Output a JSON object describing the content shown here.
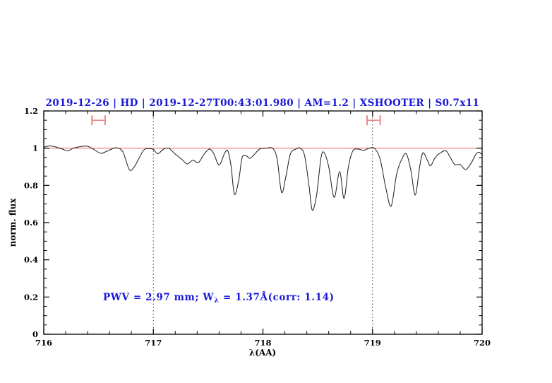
{
  "title": {
    "text": "2019-12-26 | HD | 2019-12-27T00:43:01.980 | AM=1.2 | XSHOOTER | S0.7x11"
  },
  "annotation": {
    "part1": "PWV = 2.97 mm; W",
    "sub": "λ",
    "part2": " = 1.37Å(corr: 1.14)"
  },
  "axes": {
    "xlabel": "λ(AA)",
    "ylabel": "norm. flux",
    "xticks": [
      716,
      717,
      718,
      719,
      720
    ],
    "xtick_labels": [
      "716",
      "717",
      "718",
      "719",
      "720"
    ],
    "yticks": [
      0,
      0.2,
      0.4,
      0.6,
      0.8,
      1,
      1.2
    ],
    "ytick_labels": [
      "0",
      "0.2",
      "0.4",
      "0.6",
      "0.8",
      "1",
      "1.2"
    ],
    "x_minor_step": 0.2,
    "y_minor_step": 0.05
  },
  "plot": {
    "reference_line_y": 1.0,
    "dotted_lines_x": [
      717,
      719
    ],
    "range_markers": [
      {
        "x1": 716.44,
        "x2": 716.56,
        "y": 1.15
      },
      {
        "x1": 718.95,
        "x2": 719.07,
        "y": 1.15
      }
    ]
  },
  "colors": {
    "accent_blue": "#1818d8",
    "reference_red": "#f26f6f",
    "marker_red": "#ef8585",
    "spectrum": "#1b1b1b",
    "frame": "#000000"
  },
  "chart_data": {
    "type": "line",
    "title": "2019-12-26 | HD | 2019-12-27T00:43:01.980 | AM=1.2 | XSHOOTER | S0.7x11",
    "xlabel": "λ(AA)",
    "ylabel": "norm. flux",
    "xlim": [
      716,
      720
    ],
    "ylim": [
      0,
      1.2
    ],
    "grid": false,
    "legend": false,
    "annotations": [
      "PWV = 2.97 mm; Wλ = 1.37Å(corr: 1.14)"
    ],
    "reference_line_y": 1.0,
    "dotted_vertical_lines_x": [
      717,
      719
    ],
    "series": [
      {
        "name": "normalized telluric spectrum",
        "points": [
          [
            716.0,
            1.005
          ],
          [
            716.05,
            1.012
          ],
          [
            716.1,
            1.008
          ],
          [
            716.17,
            0.995
          ],
          [
            716.22,
            0.985
          ],
          [
            716.27,
            1.0
          ],
          [
            716.33,
            1.008
          ],
          [
            716.4,
            1.01
          ],
          [
            716.46,
            0.992
          ],
          [
            716.52,
            0.972
          ],
          [
            716.57,
            0.982
          ],
          [
            716.62,
            0.995
          ],
          [
            716.66,
            1.002
          ],
          [
            716.72,
            0.982
          ],
          [
            716.78,
            0.885
          ],
          [
            716.82,
            0.895
          ],
          [
            716.86,
            0.935
          ],
          [
            716.91,
            0.988
          ],
          [
            716.95,
            0.998
          ],
          [
            717.0,
            0.993
          ],
          [
            717.04,
            0.97
          ],
          [
            717.09,
            0.993
          ],
          [
            717.14,
            1.0
          ],
          [
            717.2,
            0.968
          ],
          [
            717.26,
            0.94
          ],
          [
            717.31,
            0.915
          ],
          [
            717.36,
            0.935
          ],
          [
            717.41,
            0.922
          ],
          [
            717.46,
            0.965
          ],
          [
            717.51,
            0.995
          ],
          [
            717.55,
            0.972
          ],
          [
            717.6,
            0.91
          ],
          [
            717.65,
            0.972
          ],
          [
            717.68,
            0.985
          ],
          [
            717.71,
            0.9
          ],
          [
            717.74,
            0.752
          ],
          [
            717.78,
            0.83
          ],
          [
            717.81,
            0.95
          ],
          [
            717.85,
            0.958
          ],
          [
            717.88,
            0.945
          ],
          [
            717.92,
            0.965
          ],
          [
            717.97,
            0.995
          ],
          [
            718.03,
            1.0
          ],
          [
            718.09,
            0.998
          ],
          [
            718.13,
            0.94
          ],
          [
            718.17,
            0.762
          ],
          [
            718.21,
            0.85
          ],
          [
            718.25,
            0.968
          ],
          [
            718.3,
            0.995
          ],
          [
            718.34,
            1.0
          ],
          [
            718.38,
            0.96
          ],
          [
            718.42,
            0.8
          ],
          [
            718.45,
            0.667
          ],
          [
            718.49,
            0.75
          ],
          [
            718.53,
            0.95
          ],
          [
            718.56,
            0.975
          ],
          [
            718.6,
            0.9
          ],
          [
            718.65,
            0.735
          ],
          [
            718.7,
            0.875
          ],
          [
            718.74,
            0.73
          ],
          [
            718.78,
            0.9
          ],
          [
            718.82,
            0.985
          ],
          [
            718.87,
            0.995
          ],
          [
            718.92,
            0.988
          ],
          [
            718.97,
            1.0
          ],
          [
            719.02,
            0.998
          ],
          [
            719.07,
            0.94
          ],
          [
            719.12,
            0.79
          ],
          [
            719.17,
            0.688
          ],
          [
            719.22,
            0.86
          ],
          [
            719.27,
            0.945
          ],
          [
            719.31,
            0.968
          ],
          [
            719.35,
            0.88
          ],
          [
            719.39,
            0.748
          ],
          [
            719.43,
            0.9
          ],
          [
            719.46,
            0.975
          ],
          [
            719.5,
            0.935
          ],
          [
            719.53,
            0.905
          ],
          [
            719.57,
            0.948
          ],
          [
            719.62,
            0.975
          ],
          [
            719.67,
            0.985
          ],
          [
            719.71,
            0.95
          ],
          [
            719.75,
            0.912
          ],
          [
            719.8,
            0.912
          ],
          [
            719.85,
            0.885
          ],
          [
            719.9,
            0.92
          ],
          [
            719.94,
            0.965
          ],
          [
            719.97,
            0.978
          ],
          [
            720.0,
            0.965
          ]
        ]
      }
    ]
  }
}
